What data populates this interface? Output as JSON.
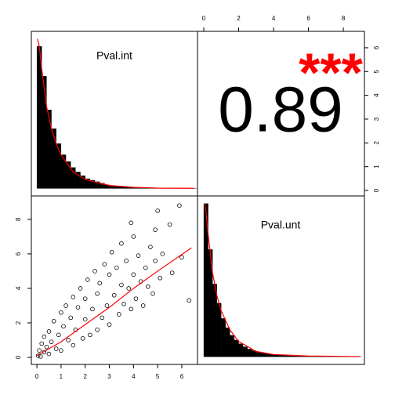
{
  "chart_data": {
    "type": "pairs",
    "variables": [
      "Pval.int",
      "Pval.unt"
    ],
    "correlation": {
      "value": 0.89,
      "stars": "***",
      "stars_color": "#ff0000"
    },
    "top_axis": {
      "xticks": [
        0,
        2,
        4,
        6,
        8
      ],
      "xlim": [
        -0.36,
        9.21
      ]
    },
    "right_axis": {
      "yticks": [
        0,
        1,
        2,
        3,
        4,
        5,
        6
      ],
      "ylim": [
        -0.23,
        6.69
      ]
    },
    "bottom_axis": {
      "xticks": [
        0,
        1,
        2,
        3,
        4,
        5,
        6
      ],
      "xlim": [
        -0.23,
        6.65
      ]
    },
    "left_axis": {
      "yticks": [
        0,
        2,
        4,
        6,
        8
      ],
      "ylim": [
        -0.41,
        9.36
      ]
    },
    "histograms": [
      {
        "type": "histogram",
        "color": "#000000",
        "line_color": "#ff0000",
        "xlim": [
          -0.23,
          6.65
        ],
        "ylim": [
          -0.1,
          2.1
        ],
        "bins": [
          0,
          0.2,
          0.4,
          0.6,
          0.8,
          1,
          1.2,
          1.4,
          1.6,
          1.8,
          2,
          2.2,
          2.4,
          2.6,
          2.8,
          3,
          3.2,
          3.4,
          3.6,
          3.8,
          4,
          4.2,
          4.4,
          4.6,
          4.8,
          5,
          5.2,
          5.4,
          5.6,
          5.8,
          6,
          6.2,
          6.4,
          6.6
        ],
        "counts": [
          1.9,
          1.5,
          1.05,
          0.8,
          0.6,
          0.45,
          0.36,
          0.28,
          0.22,
          0.17,
          0.13,
          0.11,
          0.09,
          0.07,
          0.05,
          0.04,
          0.035,
          0.03,
          0.025,
          0.02,
          0.015,
          0.012,
          0.01,
          0.008,
          0.006,
          0.005,
          0.004,
          0.003,
          0.003,
          0.002,
          0.002,
          0.001,
          0.001
        ],
        "density": {
          "x": [
            0.02,
            0.1,
            0.2,
            0.4,
            0.6,
            0.8,
            1,
            1.5,
            2,
            3,
            4,
            5,
            6.5
          ],
          "y": [
            2.0,
            1.9,
            1.6,
            1.1,
            0.8,
            0.6,
            0.45,
            0.22,
            0.12,
            0.04,
            0.015,
            0.005,
            0.002
          ]
        }
      },
      {
        "type": "histogram",
        "color": "#000000",
        "line_color": "#ff0000",
        "xlim": [
          -0.36,
          9.21
        ],
        "ylim": [
          -0.1,
          2.1
        ],
        "bins": [
          0,
          0.25,
          0.5,
          0.75,
          1,
          1.25,
          1.5,
          1.75,
          2,
          2.25,
          2.5,
          2.75,
          3,
          3.25,
          3.5,
          3.75,
          4,
          4.25,
          4.5,
          4.75,
          5,
          5.25,
          5.5,
          5.75,
          6,
          6.25,
          6.5,
          6.75,
          7,
          7.25,
          7.5,
          7.75,
          8,
          8.25,
          8.5,
          8.75,
          9
        ],
        "counts": [
          2.0,
          1.4,
          0.95,
          0.7,
          0.5,
          0.38,
          0.28,
          0.22,
          0.17,
          0.13,
          0.1,
          0.08,
          0.06,
          0.05,
          0.04,
          0.03,
          0.025,
          0.02,
          0.018,
          0.015,
          0.012,
          0.01,
          0.008,
          0.007,
          0.006,
          0.005,
          0.004,
          0.003,
          0.003,
          0.002,
          0.002,
          0.002,
          0.001,
          0.001,
          0.001,
          0.001
        ],
        "density": {
          "x": [
            0.02,
            0.1,
            0.25,
            0.5,
            0.75,
            1,
            1.5,
            2,
            3,
            4,
            6,
            9
          ],
          "y": [
            2.0,
            1.95,
            1.6,
            1.1,
            0.8,
            0.6,
            0.35,
            0.2,
            0.07,
            0.03,
            0.01,
            0.003
          ]
        }
      }
    ],
    "scatter": {
      "type": "scatter",
      "color": "#000000",
      "fit_color": "#ff0000",
      "xlim": [
        -0.23,
        6.65
      ],
      "ylim": [
        -0.41,
        9.36
      ],
      "x": [
        0.05,
        0.1,
        0.15,
        0.2,
        0.3,
        0.3,
        0.4,
        0.5,
        0.5,
        0.6,
        0.7,
        0.8,
        0.9,
        1.0,
        1.0,
        1.1,
        1.2,
        1.3,
        1.4,
        1.5,
        1.5,
        1.6,
        1.7,
        1.8,
        1.9,
        2.0,
        2.0,
        2.1,
        2.2,
        2.3,
        2.4,
        2.5,
        2.5,
        2.6,
        2.7,
        2.8,
        2.9,
        3.0,
        3.0,
        3.1,
        3.2,
        3.3,
        3.4,
        3.5,
        3.5,
        3.6,
        3.7,
        3.8,
        3.9,
        4.0,
        4.0,
        4.1,
        4.2,
        4.3,
        4.4,
        4.5,
        4.6,
        4.7,
        4.8,
        4.9,
        5.0,
        5.1,
        5.2,
        5.5,
        5.6,
        5.9,
        6.3,
        6.0,
        4.9,
        3.9
      ],
      "y": [
        0.1,
        0.4,
        0.05,
        0.8,
        0.3,
        1.2,
        0.6,
        0.2,
        1.5,
        0.9,
        2.1,
        0.5,
        1.3,
        2.6,
        0.4,
        1.8,
        3.0,
        1.0,
        2.3,
        3.5,
        0.7,
        1.6,
        2.9,
        4.0,
        1.1,
        2.2,
        3.4,
        4.5,
        1.3,
        2.8,
        5.0,
        3.7,
        1.6,
        4.3,
        2.3,
        5.4,
        3.0,
        4.8,
        1.9,
        6.1,
        3.6,
        5.2,
        2.5,
        4.2,
        6.6,
        3.1,
        5.6,
        4.0,
        2.8,
        4.8,
        7.0,
        3.4,
        5.9,
        4.4,
        3.0,
        5.2,
        4.1,
        6.4,
        3.7,
        5.6,
        8.5,
        4.6,
        6.0,
        7.7,
        4.9,
        8.8,
        3.3,
        5.8,
        7.4,
        7.8
      ],
      "fit": {
        "x": [
          0,
          1,
          2,
          3,
          4,
          5,
          6.4
        ],
        "y": [
          0.1,
          0.9,
          1.9,
          2.9,
          4.0,
          5.0,
          6.35
        ]
      }
    }
  }
}
